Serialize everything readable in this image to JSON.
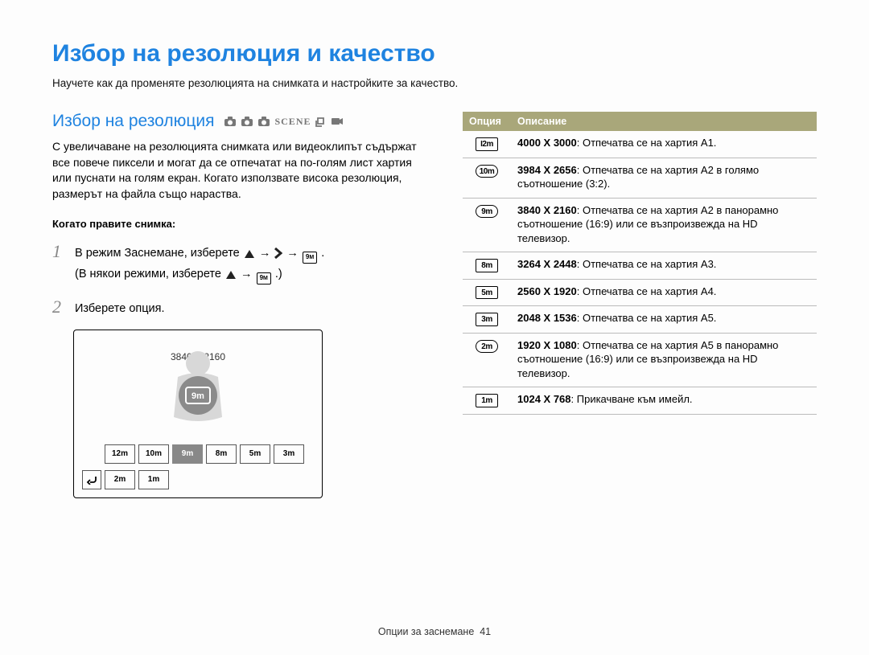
{
  "page": {
    "title": "Избор на резолюция и качество",
    "intro": "Научете как да променяте резолюцията на снимката и настройките за качество.",
    "footer_label": "Опции за заснемане",
    "page_number": "41"
  },
  "section": {
    "title": "Избор на резолюция",
    "mode_icons": [
      "camera-smart",
      "camera-auto",
      "camera-program",
      "scene-text",
      "hand-dual",
      "video"
    ],
    "body": "С увеличаване на резолюцията снимката или видеоклипът съдържат все повече пиксели и могат да се отпечатат на по-голям лист хартия или пуснати на голям екран. Когато използвате висока резолюция, размерът на файла също нараства.",
    "sub_heading": "Когато правите снимка:",
    "steps": [
      {
        "num": "1",
        "line1_a": "В режим Заснемане, изберете ",
        "line1_b": " → ",
        "line1_c": " → ",
        "line1_d": ".",
        "line2_a": "(В някои режими, изберете ",
        "line2_b": " → ",
        "line2_c": ".)"
      },
      {
        "num": "2",
        "text": "Изберете опция."
      }
    ]
  },
  "screen": {
    "current_label": "3840 X 2160",
    "cells": [
      "12m",
      "10m",
      "9m",
      "8m",
      "5m",
      "3m",
      "2m",
      "1m"
    ],
    "selected_index": 2
  },
  "table": {
    "header_option": "Опция",
    "header_description": "Описание",
    "rows": [
      {
        "icon_text": "I2m",
        "icon_style": "plain",
        "bold": "4000 X 3000",
        "rest": ": Отпечатва се на хартия А1."
      },
      {
        "icon_text": "10m",
        "icon_style": "wide",
        "bold": "3984 X 2656",
        "rest": ": Отпечатва се на хартия А2 в голямо съотношение (3:2)."
      },
      {
        "icon_text": "9m",
        "icon_style": "wide",
        "bold": "3840 X 2160",
        "rest": ": Отпечатва се на хартия А2 в панорамно съотношение (16:9) или се възпроизвежда на HD телевизор."
      },
      {
        "icon_text": "8m",
        "icon_style": "plain",
        "bold": "3264 X 2448",
        "rest": ": Отпечатва се на хартия А3."
      },
      {
        "icon_text": "5m",
        "icon_style": "plain",
        "bold": "2560 X 1920",
        "rest": ": Отпечатва се на хартия А4."
      },
      {
        "icon_text": "3m",
        "icon_style": "plain",
        "bold": "2048 X 1536",
        "rest": ": Отпечатва се на хартия А5."
      },
      {
        "icon_text": "2m",
        "icon_style": "wide",
        "bold": "1920 X 1080",
        "rest": ": Отпечатва се на хартия А5 в панорамно съотношение (16:9) или се възпроизвежда на HD телевизор."
      },
      {
        "icon_text": "1m",
        "icon_style": "plain",
        "bold": "1024 X 768",
        "rest": ": Прикачване към имейл."
      }
    ]
  },
  "colors": {
    "title_blue": "#1f83e0",
    "table_header_bg": "#a9a77a",
    "table_header_fg": "#ffffff",
    "step_num_gray": "#888888",
    "border_gray": "#bbbbbb"
  }
}
